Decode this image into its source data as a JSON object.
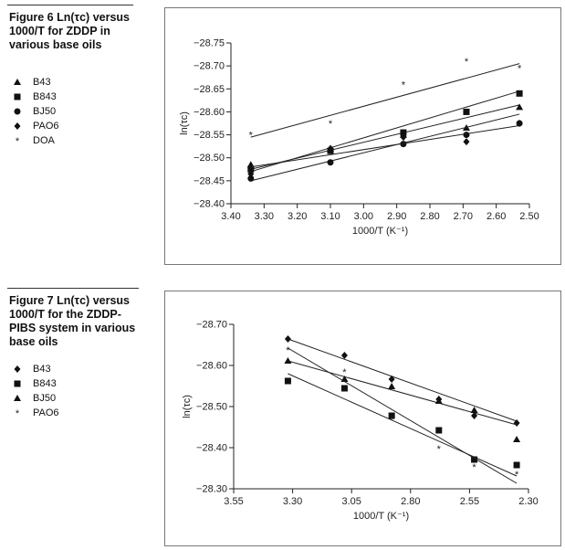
{
  "figure6": {
    "caption_line1": "Figure 6 Ln(τc) versus",
    "caption_line2": "1000/T for ZDDP in",
    "caption_line3": "various base oils"
  },
  "figure7": {
    "caption_line1": "Figure 7 Ln(τc) versus",
    "caption_line2": "1000/T for the ZDDP-",
    "caption_line3": "PIBS system in various",
    "caption_line4": "base oils"
  },
  "chart_data": [
    {
      "type": "scatter",
      "xlabel": "1000/T (K⁻¹)",
      "ylabel": "ln(τc)",
      "xlim": [
        3.4,
        2.5
      ],
      "ylim": [
        -28.4,
        -28.75
      ],
      "x_reversed": true,
      "y_reversed": true,
      "xticks": [
        "3.40",
        "3.30",
        "3.20",
        "3.10",
        "3.00",
        "2.90",
        "2.80",
        "2.70",
        "2.60",
        "2.50"
      ],
      "yticks": [
        "−28.75",
        "−28.70",
        "−28.65",
        "−28.60",
        "−28.55",
        "−28.50",
        "−28.45",
        "−28.40"
      ],
      "trendlines": true,
      "series": [
        {
          "name": "B43",
          "marker": "triangle",
          "x": [
            3.34,
            3.1,
            2.88,
            2.69,
            2.53
          ],
          "y": [
            -28.485,
            -28.52,
            -28.55,
            -28.565,
            -28.61
          ],
          "fit": [
            -28.475,
            -28.615
          ]
        },
        {
          "name": "B843",
          "marker": "square",
          "x": [
            3.34,
            3.1,
            2.88,
            2.69,
            2.53
          ],
          "y": [
            -28.475,
            -28.515,
            -28.555,
            -28.6,
            -28.64
          ],
          "fit": [
            -28.47,
            -28.645
          ]
        },
        {
          "name": "BJ50",
          "marker": "circle",
          "x": [
            3.34,
            3.1,
            2.88,
            2.69,
            2.53
          ],
          "y": [
            -28.455,
            -28.49,
            -28.53,
            -28.55,
            -28.575
          ],
          "fit": [
            -28.45,
            -28.595
          ]
        },
        {
          "name": "PAO6",
          "marker": "diamond",
          "x": [
            3.34,
            3.1,
            2.88,
            2.69,
            2.53
          ],
          "y": [
            -28.465,
            -28.52,
            -28.545,
            -28.535,
            -28.575
          ],
          "fit": [
            -28.48,
            -28.57
          ]
        },
        {
          "name": "DOA",
          "marker": "star",
          "x": [
            3.34,
            3.1,
            2.88,
            2.69,
            2.53
          ],
          "y": [
            -28.55,
            -28.575,
            -28.66,
            -28.71,
            -28.695
          ],
          "fit": [
            -28.545,
            -28.705
          ]
        }
      ]
    },
    {
      "type": "scatter",
      "xlabel": "1000/T (K⁻¹)",
      "ylabel": "ln(τc)",
      "xlim": [
        3.55,
        2.3
      ],
      "ylim": [
        -28.25,
        -28.7
      ],
      "x_reversed": true,
      "y_reversed": true,
      "xticks": [
        "3.55",
        "3.30",
        "3.05",
        "2.80",
        "2.55",
        "2.30"
      ],
      "yticks": [
        "−28.70",
        "−28.60",
        "−28.50",
        "−28.40",
        "−28.30"
      ],
      "trendlines": true,
      "series": [
        {
          "name": "B43",
          "marker": "diamond",
          "x": [
            3.32,
            3.08,
            2.88,
            2.68,
            2.53,
            2.35
          ],
          "y": [
            -28.66,
            -28.615,
            -28.55,
            -28.495,
            -28.45,
            -28.43
          ],
          "fit": [
            -28.66,
            -28.435
          ]
        },
        {
          "name": "B843",
          "marker": "square",
          "x": [
            3.32,
            3.08,
            2.88,
            2.68,
            2.53,
            2.35
          ],
          "y": [
            -28.545,
            -28.525,
            -28.45,
            -28.41,
            -28.33,
            -28.315
          ],
          "fit": [
            -28.565,
            -28.285
          ]
        },
        {
          "name": "BJ50",
          "marker": "triangle",
          "x": [
            3.32,
            3.08,
            2.88,
            2.68,
            2.53,
            2.35
          ],
          "y": [
            -28.6,
            -28.55,
            -28.53,
            -28.49,
            -28.465,
            -28.385
          ],
          "fit": [
            -28.6,
            -28.425
          ]
        },
        {
          "name": "PAO6",
          "marker": "star",
          "x": [
            3.32,
            3.08,
            2.88,
            2.68,
            2.53,
            2.35
          ],
          "y": [
            -28.63,
            -28.57,
            -28.44,
            -28.36,
            -28.31,
            -28.29
          ],
          "fit": [
            -28.635,
            -28.265
          ]
        }
      ]
    }
  ]
}
